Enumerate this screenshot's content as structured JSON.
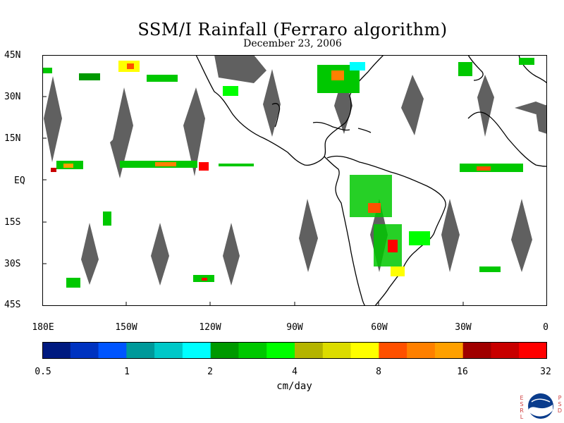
{
  "header": {
    "title": "SSM/I Rainfall (Ferraro algorithm)",
    "date": "December 23, 2006"
  },
  "map": {
    "lon_range": [
      -180,
      0
    ],
    "lat_range": [
      -45,
      45
    ],
    "lat_ticks": [
      "45N",
      "30N",
      "15N",
      "EQ",
      "15S",
      "30S",
      "45S"
    ],
    "lon_ticks": [
      "180E",
      "150W",
      "120W",
      "90W",
      "60W",
      "30W",
      "0"
    ],
    "land_color": "#000000",
    "missing_color": "#606060"
  },
  "colorbar": {
    "units": "cm/day",
    "labels": [
      "0.5",
      "1",
      "2",
      "4",
      "8",
      "16",
      "32"
    ],
    "colors": [
      "#001a80",
      "#0033c0",
      "#0055ff",
      "#00999a",
      "#00c8c8",
      "#00ffff",
      "#009900",
      "#00c800",
      "#00ff00",
      "#b4b400",
      "#dcdc00",
      "#ffff00",
      "#ff5000",
      "#ff8000",
      "#ffa000",
      "#a00000",
      "#c80000",
      "#ff0000"
    ]
  },
  "logo": {
    "left_letters": "ESRL",
    "right_letters": "PSD",
    "center": "NOAA"
  }
}
